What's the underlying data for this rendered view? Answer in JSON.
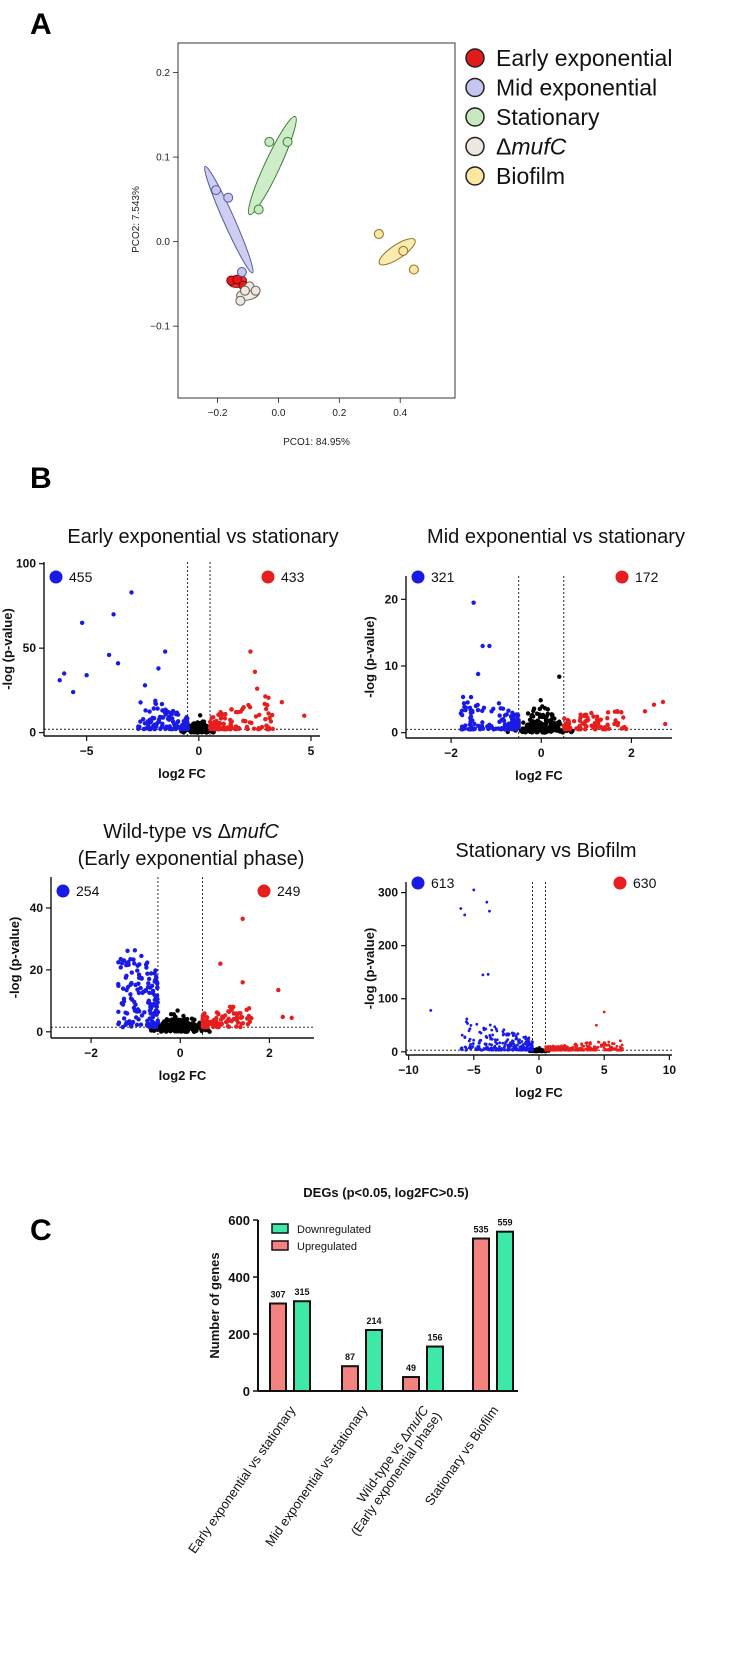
{
  "panel_labels": {
    "a": "A",
    "b": "B",
    "c": "C"
  },
  "chart_data": [
    {
      "id": "pcoa",
      "type": "scatter",
      "title": "",
      "xlabel": "PCO1: 84.95%",
      "ylabel": "PCO2: 7.543%",
      "xlim": [
        -0.33,
        0.58
      ],
      "ylim": [
        -0.185,
        0.235
      ],
      "xticks": [
        -0.2,
        0,
        0.2,
        0.4
      ],
      "xtick_labels": [
        "−0.2",
        "0.0",
        "0.2",
        "0.4"
      ],
      "yticks": [
        -0.1,
        0,
        0.1,
        0.2
      ],
      "ytick_labels": [
        "−0.1",
        "0.0",
        "0.1",
        "0.2"
      ],
      "legend": [
        {
          "name": "Early exponential",
          "prefix": "",
          "italic": "",
          "fill": "#e31a1c",
          "stroke": "#8b0000"
        },
        {
          "name": "Mid exponential",
          "prefix": "",
          "italic": "",
          "fill": "#c4c6ef",
          "stroke": "#5a5a9a"
        },
        {
          "name": "Stationary",
          "prefix": "",
          "italic": "",
          "fill": "#c7e9bf",
          "stroke": "#3f7a3a"
        },
        {
          "name": "ΔmufC",
          "prefix": "Δ",
          "italic": "mufC",
          "fill": "#ece8e0",
          "stroke": "#6b5e55"
        },
        {
          "name": "Biofilm",
          "prefix": "",
          "italic": "",
          "fill": "#fbe7a2",
          "stroke": "#8a7420"
        }
      ],
      "series": [
        {
          "name": "Early exponential",
          "points": [
            [
              -0.155,
              -0.046
            ],
            [
              -0.135,
              -0.045
            ],
            [
              -0.115,
              -0.052
            ]
          ],
          "ellipse": [
            -0.135,
            -0.047,
            0.03,
            0.007,
            -8
          ]
        },
        {
          "name": "Mid exponential",
          "points": [
            [
              -0.205,
              0.061
            ],
            [
              -0.165,
              0.052
            ],
            [
              -0.12,
              -0.036
            ]
          ],
          "ellipse": [
            -0.163,
            0.026,
            0.018,
            0.069,
            -24
          ]
        },
        {
          "name": "Stationary",
          "points": [
            [
              -0.03,
              0.118
            ],
            [
              0.03,
              0.118
            ],
            [
              -0.065,
              0.038
            ]
          ],
          "ellipse": [
            -0.02,
            0.09,
            0.025,
            0.064,
            25
          ]
        },
        {
          "name": "ΔmufC",
          "points": [
            [
              -0.095,
              -0.053
            ],
            [
              -0.11,
              -0.058
            ],
            [
              -0.125,
              -0.07
            ],
            [
              -0.075,
              -0.058
            ]
          ],
          "ellipse": [
            -0.1,
            -0.062,
            0.038,
            0.007,
            -12
          ]
        },
        {
          "name": "Biofilm",
          "points": [
            [
              0.33,
              0.009
            ],
            [
              0.41,
              -0.011
            ],
            [
              0.445,
              -0.033
            ]
          ],
          "ellipse": [
            0.39,
            -0.012,
            0.07,
            0.008,
            -34
          ]
        }
      ]
    },
    {
      "id": "volcano1",
      "type": "scatter",
      "title": "Early exponential vs stationary",
      "xlabel": "log2 FC",
      "ylabel": "-log (p-value)",
      "xlim": [
        -6.9,
        5.4
      ],
      "ylim": [
        -2,
        101
      ],
      "xticks": [
        -5,
        0,
        5
      ],
      "yticks": [
        0,
        50,
        100
      ],
      "down_count": "455",
      "up_count": "433",
      "threshold_fc": 0.5,
      "threshold_y": 2,
      "highlight": [
        [
          -6.2,
          31
        ],
        [
          -6.0,
          35
        ],
        [
          -5.6,
          24
        ],
        [
          -5.2,
          65
        ],
        [
          -5.0,
          34
        ],
        [
          -4.0,
          46
        ],
        [
          -3.8,
          70
        ],
        [
          -3.6,
          41
        ],
        [
          -3.0,
          83
        ],
        [
          -2.4,
          28
        ],
        [
          -1.5,
          48
        ],
        [
          -1.8,
          38
        ],
        [
          2.3,
          48
        ],
        [
          2.5,
          36
        ],
        [
          2.6,
          26
        ],
        [
          4.7,
          10
        ],
        [
          3.7,
          18
        ],
        [
          3.0,
          14
        ]
      ],
      "seed": 11
    },
    {
      "id": "volcano2",
      "type": "scatter",
      "title": "Mid exponential vs stationary",
      "xlabel": "log2 FC",
      "ylabel": "-log (p-value)",
      "xlim": [
        -3.0,
        2.9
      ],
      "ylim": [
        -0.8,
        23.5
      ],
      "xticks": [
        -2,
        0,
        2
      ],
      "yticks": [
        0,
        10,
        20
      ],
      "down_count": "321",
      "up_count": "172",
      "threshold_fc": 0.5,
      "threshold_y": 0.5,
      "highlight": [
        [
          -1.5,
          19.5
        ],
        [
          -1.3,
          13
        ],
        [
          -1.15,
          13
        ],
        [
          -1.4,
          8.8
        ],
        [
          0.4,
          8.4
        ],
        [
          2.7,
          4.6
        ],
        [
          2.5,
          4.2
        ],
        [
          2.3,
          3.2
        ],
        [
          2.75,
          1.3
        ]
      ],
      "seed": 23
    },
    {
      "id": "volcano3",
      "type": "scatter",
      "title": "Wild-type vs ΔmufC",
      "title_prefix": "Wild-type vs Δ",
      "title_italic": "mufC",
      "subtitle": "(Early exponential phase)",
      "xlabel": "log2 FC",
      "ylabel": "-log (p-value)",
      "xlim": [
        -2.9,
        3.0
      ],
      "ylim": [
        -2,
        50
      ],
      "xticks": [
        -2,
        0,
        2
      ],
      "yticks": [
        0,
        20,
        40
      ],
      "down_count": "254",
      "up_count": "249",
      "threshold_fc": 0.5,
      "threshold_y": 1.5,
      "highlight": [
        [
          1.4,
          36.5
        ],
        [
          0.9,
          22
        ],
        [
          1.4,
          16
        ],
        [
          2.2,
          13.5
        ],
        [
          2.5,
          4.5
        ],
        [
          2.3,
          4.8
        ]
      ],
      "seed": 37
    },
    {
      "id": "volcano4",
      "type": "scatter",
      "title": "Stationary vs Biofilm",
      "xlabel": "log2 FC",
      "ylabel": "-log (p-value)",
      "xlim": [
        -10.2,
        10.2
      ],
      "ylim": [
        -6,
        320
      ],
      "xticks": [
        -10,
        -5,
        0,
        5,
        10
      ],
      "yticks": [
        0,
        100,
        200,
        300
      ],
      "down_count": "613",
      "up_count": "630",
      "threshold_fc": 0.5,
      "threshold_y": 3,
      "highlight": [
        [
          -5.0,
          305
        ],
        [
          -6.0,
          270
        ],
        [
          -5.7,
          258
        ],
        [
          -4.0,
          282
        ],
        [
          -3.8,
          265
        ],
        [
          -8.3,
          78
        ],
        [
          -4.3,
          145
        ],
        [
          -3.9,
          146
        ],
        [
          5.0,
          75
        ],
        [
          4.4,
          50
        ]
      ],
      "seed": 53
    },
    {
      "id": "degs",
      "type": "bar",
      "title": "DEGs (p<0.05, log2FC>0.5)",
      "xlabel": "",
      "ylabel": "Number of genes",
      "ylim": [
        0,
        600
      ],
      "yticks": [
        0,
        200,
        400,
        600
      ],
      "categories": [
        {
          "line1": "Early exponential vs stationary",
          "line2": ""
        },
        {
          "line1": "Mid exponential vs stationary",
          "line2": ""
        },
        {
          "line1": "Wild-type vs ΔmufC",
          "line1_prefix": "Wild-type vs Δ",
          "line1_italic": "mufC",
          "line2": "(Early exponential phase)"
        },
        {
          "line1": "Stationary vs Biofilm",
          "line2": ""
        }
      ],
      "legend": [
        "Downregulated",
        "Upregulated"
      ],
      "series": [
        {
          "name": "Upregulated",
          "color": "#f4827f",
          "values": [
            307,
            87,
            49,
            535
          ]
        },
        {
          "name": "Downregulated",
          "color": "#3ee8a6",
          "values": [
            315,
            214,
            156,
            559
          ]
        }
      ]
    }
  ],
  "colors": {
    "down": "#1a1ae6",
    "up": "#e61e1e",
    "ns": "#000000"
  }
}
